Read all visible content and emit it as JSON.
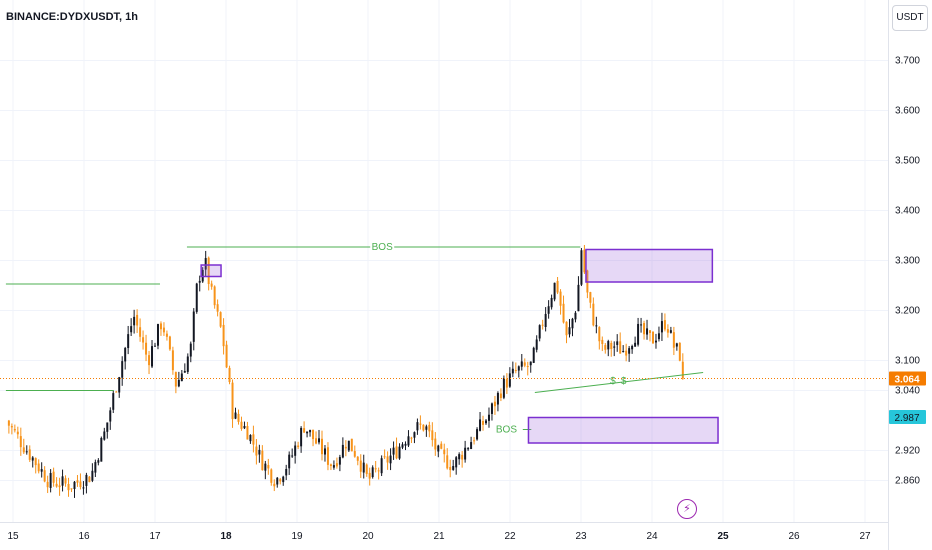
{
  "header": {
    "symbol": "BINANCE:DYDXUSDT, 1h",
    "currency_button": "USDT"
  },
  "colors": {
    "up": "#131722",
    "down": "#f7931a",
    "level_line": "#4caf50",
    "zone_border": "#7b2fd0",
    "zone_fill": "rgba(155,100,220,0.25)",
    "price_tag": "#f57c00",
    "level_tag": "#26c6da",
    "flash_icon": "#9c27b0"
  },
  "icons": {
    "flash": "lightning-icon"
  },
  "chart_data": {
    "type": "candlestick",
    "x_ticks": [
      "15",
      "16",
      "17",
      "18",
      "19",
      "20",
      "21",
      "22",
      "23",
      "24",
      "25",
      "26",
      "27"
    ],
    "y_ticks": [
      "3.700",
      "3.600",
      "3.500",
      "3.400",
      "3.300",
      "3.200",
      "3.100",
      "3.040",
      "2.920",
      "2.860"
    ],
    "ylim": [
      2.83,
      3.79
    ],
    "current_price": 3.064,
    "current_price_label": "3.064",
    "level_price": 2.987,
    "level_price_label": "2.987",
    "waypoints": [
      [
        14.9,
        2.98
      ],
      [
        15.2,
        2.92
      ],
      [
        15.5,
        2.86
      ],
      [
        15.8,
        2.85
      ],
      [
        16.1,
        2.87
      ],
      [
        16.3,
        2.96
      ],
      [
        16.5,
        3.08
      ],
      [
        16.7,
        3.19
      ],
      [
        16.9,
        3.1
      ],
      [
        17.1,
        3.18
      ],
      [
        17.3,
        3.05
      ],
      [
        17.5,
        3.12
      ],
      [
        17.6,
        3.26
      ],
      [
        17.7,
        3.3
      ],
      [
        17.8,
        3.23
      ],
      [
        17.95,
        3.15
      ],
      [
        18.1,
        2.99
      ],
      [
        18.3,
        2.96
      ],
      [
        18.5,
        2.9
      ],
      [
        18.7,
        2.86
      ],
      [
        18.9,
        2.9
      ],
      [
        19.1,
        2.97
      ],
      [
        19.3,
        2.93
      ],
      [
        19.5,
        2.89
      ],
      [
        19.7,
        2.94
      ],
      [
        19.85,
        2.91
      ],
      [
        20.0,
        2.86
      ],
      [
        20.2,
        2.89
      ],
      [
        20.4,
        2.92
      ],
      [
        20.6,
        2.96
      ],
      [
        20.8,
        2.97
      ],
      [
        21.0,
        2.91
      ],
      [
        21.2,
        2.89
      ],
      [
        21.5,
        2.95
      ],
      [
        21.7,
        2.99
      ],
      [
        21.9,
        3.05
      ],
      [
        22.1,
        3.08
      ],
      [
        22.3,
        3.09
      ],
      [
        22.5,
        3.2
      ],
      [
        22.65,
        3.26
      ],
      [
        22.8,
        3.14
      ],
      [
        22.95,
        3.22
      ],
      [
        23.0,
        3.33
      ],
      [
        23.1,
        3.22
      ],
      [
        23.3,
        3.12
      ],
      [
        23.45,
        3.13
      ],
      [
        23.6,
        3.12
      ],
      [
        23.8,
        3.16
      ],
      [
        24.0,
        3.14
      ],
      [
        24.2,
        3.18
      ],
      [
        24.3,
        3.13
      ],
      [
        24.4,
        3.11
      ],
      [
        24.45,
        3.064
      ]
    ],
    "bos_labels": [
      "BOS",
      "BOS"
    ],
    "liquidity_marks": [
      "$",
      "$"
    ],
    "horizontal_levels": [
      {
        "from": 14.9,
        "to": 17.07,
        "price": 3.253
      },
      {
        "from": 14.9,
        "to": 16.42,
        "price": 3.04
      }
    ],
    "trendline": {
      "from": [
        22.35,
        3.036
      ],
      "to": [
        24.72,
        3.076
      ]
    },
    "bos_lines": [
      {
        "label_index": 0,
        "from": 17.45,
        "to": 22.99,
        "price": 3.327,
        "label_x": 20.2
      },
      {
        "label_index": 1,
        "from": 22.18,
        "to": 22.3,
        "price": 2.962,
        "label_x": 21.95
      }
    ],
    "liquidity_positions": [
      [
        23.45,
        3.061
      ],
      [
        23.6,
        3.061
      ]
    ],
    "zones": [
      {
        "x1": 17.65,
        "x2": 17.93,
        "top": 3.291,
        "bottom": 3.268
      },
      {
        "x1": 23.07,
        "x2": 24.85,
        "top": 3.322,
        "bottom": 3.257
      },
      {
        "x1": 22.26,
        "x2": 24.93,
        "top": 2.986,
        "bottom": 2.935
      }
    ]
  }
}
